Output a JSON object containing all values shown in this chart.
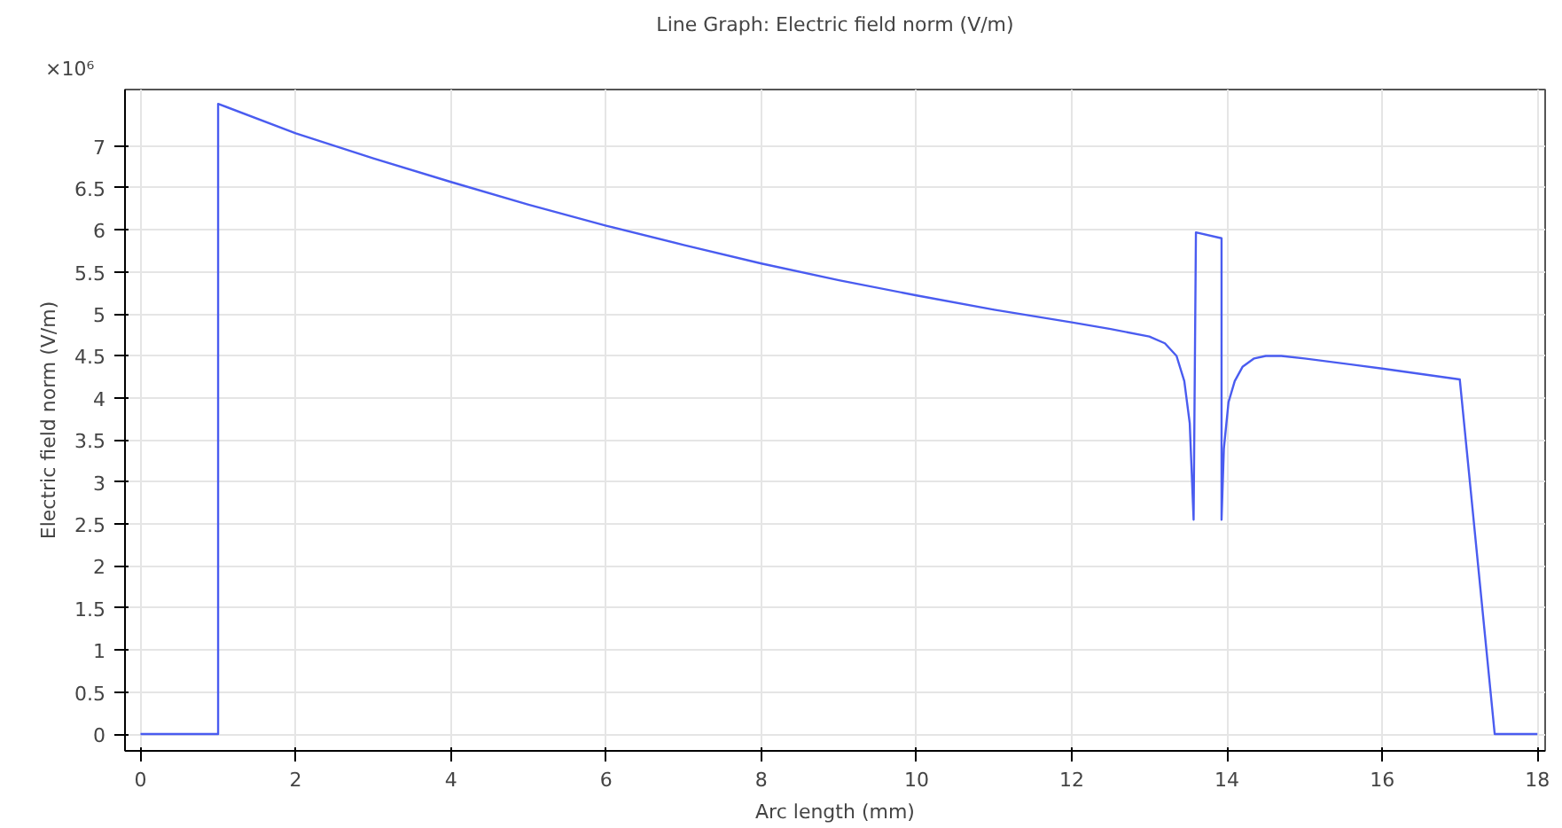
{
  "chart_data": {
    "type": "line",
    "title": "Line Graph: Electric field norm (V/m)",
    "xlabel": "Arc length (mm)",
    "ylabel": "Electric field norm (V/m)",
    "annotations": [
      "×10⁶"
    ],
    "series": [
      {
        "color": "#4a5cf0",
        "x": [
          0,
          1,
          1,
          2,
          3,
          4,
          5,
          6,
          7,
          8,
          9,
          10,
          11,
          12,
          12.5,
          13,
          13.2,
          13.35,
          13.45,
          13.52,
          13.57,
          13.6,
          13.93,
          13.93,
          13.96,
          14.02,
          14.1,
          14.2,
          14.35,
          14.5,
          14.7,
          15,
          16,
          17,
          17.45,
          18
        ],
        "values": [
          0,
          0,
          7.5,
          7.15,
          6.85,
          6.57,
          6.3,
          6.05,
          5.82,
          5.6,
          5.4,
          5.22,
          5.05,
          4.9,
          4.82,
          4.73,
          4.65,
          4.5,
          4.2,
          3.7,
          2.55,
          5.97,
          5.9,
          2.55,
          3.4,
          3.95,
          4.2,
          4.37,
          4.47,
          4.5,
          4.5,
          4.47,
          4.35,
          4.22,
          0,
          0
        ]
      }
    ],
    "xlim": [
      -0.2,
      18.1
    ],
    "ylim": [
      -0.2,
      7.67
    ],
    "xticks": [
      0,
      2,
      4,
      6,
      8,
      10,
      12,
      14,
      16,
      18
    ],
    "yticks": [
      0,
      0.5,
      1,
      1.5,
      2,
      2.5,
      3,
      3.5,
      4,
      4.5,
      5,
      5.5,
      6,
      6.5,
      7
    ],
    "grid": true,
    "marker": "none",
    "line_style": "solid"
  }
}
